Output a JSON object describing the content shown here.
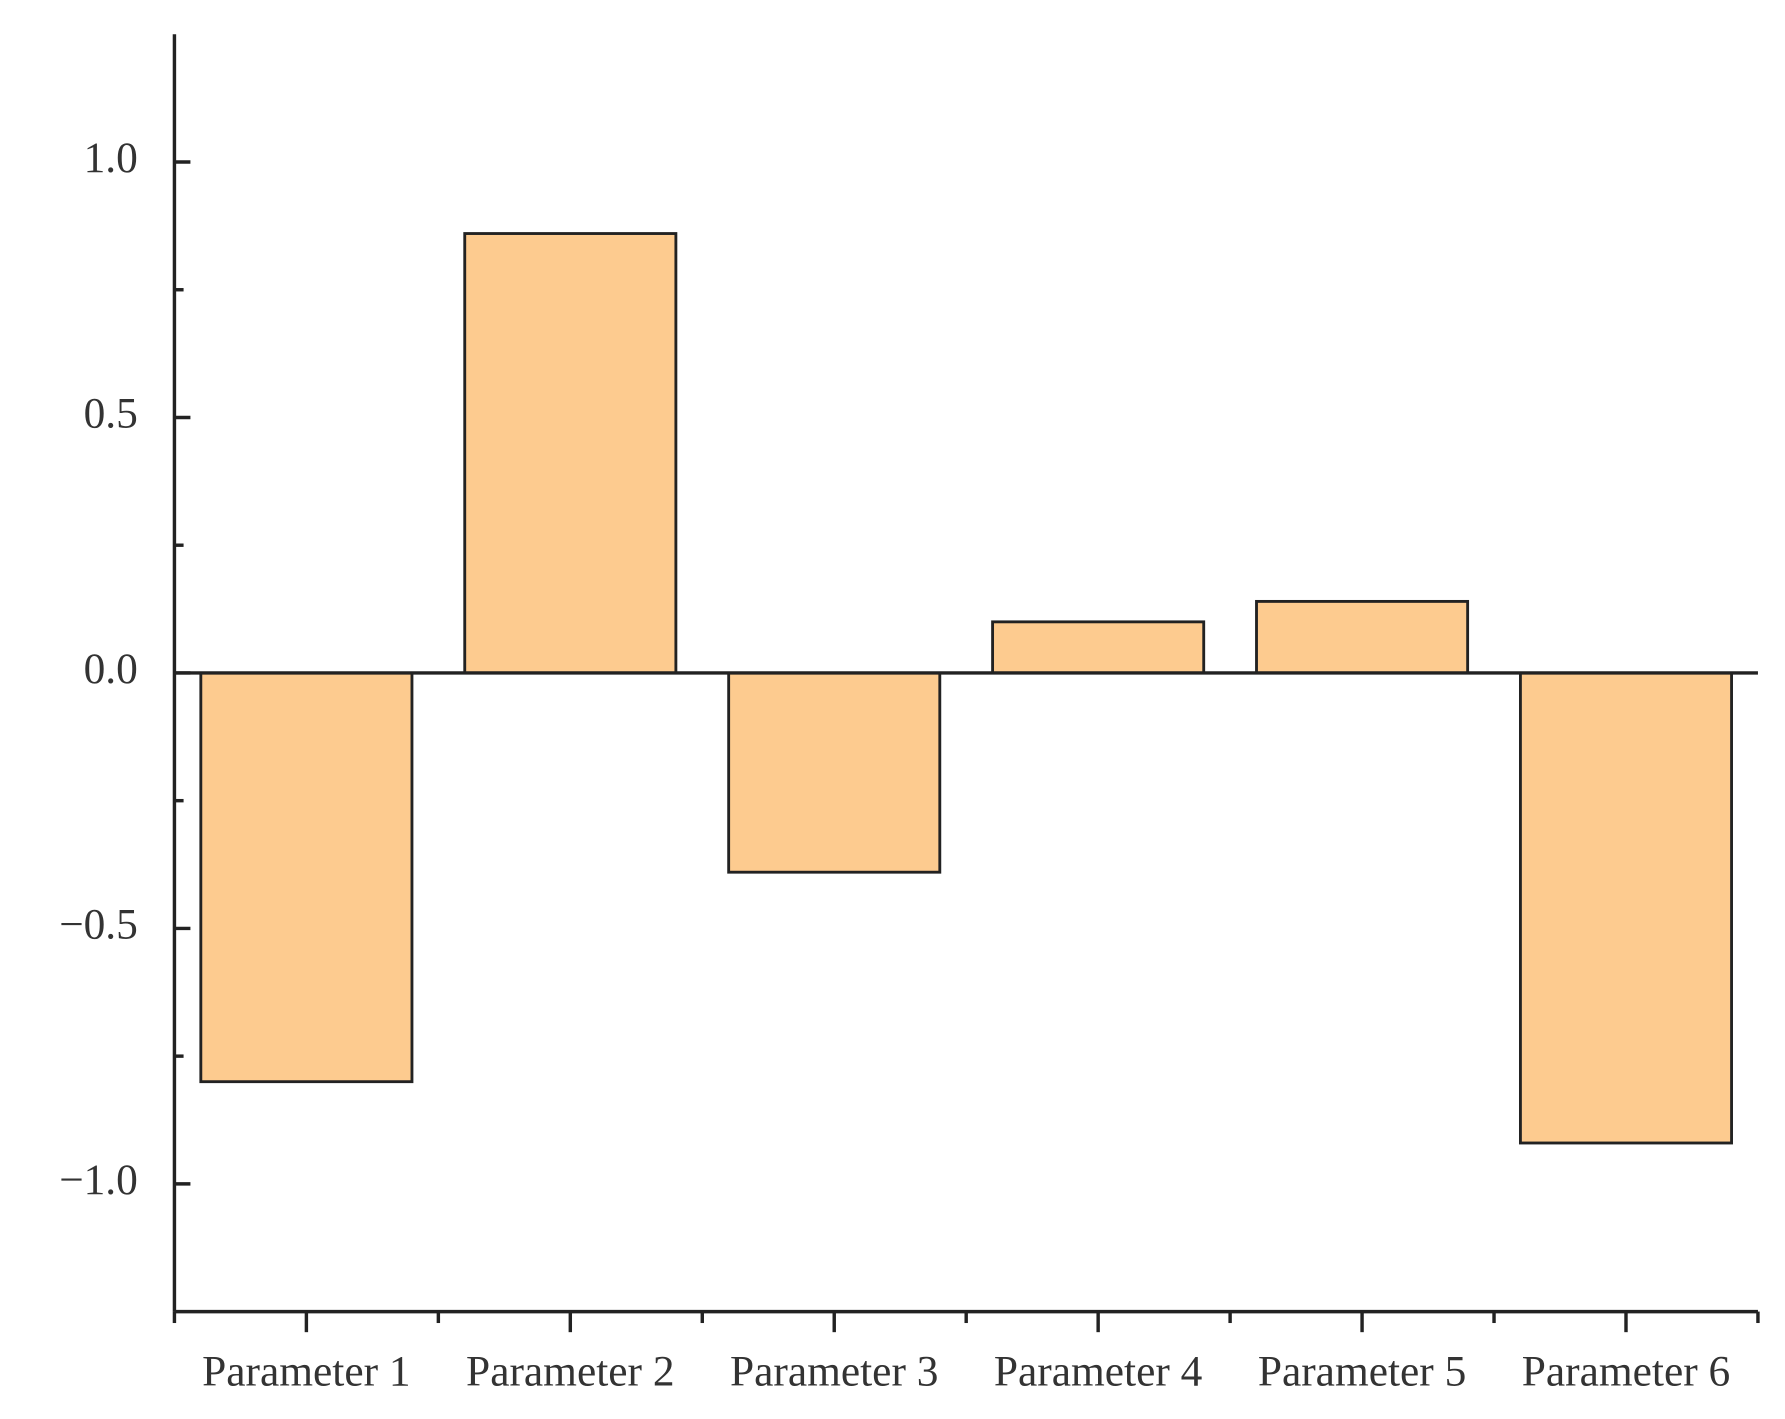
{
  "chart_data": {
    "type": "bar",
    "categories": [
      "Parameter 1",
      "Parameter 2",
      "Parameter 3",
      "Parameter 4",
      "Parameter 5",
      "Parameter 6"
    ],
    "values": [
      -0.8,
      0.86,
      -0.39,
      0.1,
      0.14,
      -0.92
    ],
    "color": "#fdcb8f",
    "ylim": [
      -1.25,
      1.25
    ],
    "yticks": [
      {
        "value": -1,
        "label": "−1.0"
      },
      {
        "value": -0.5,
        "label": "−0.5"
      },
      {
        "value": 0,
        "label": "0.0"
      },
      {
        "value": 0.5,
        "label": "0.5"
      },
      {
        "value": 1,
        "label": "1.0"
      }
    ],
    "yticks_minor": [
      -0.75,
      -0.25,
      0.25,
      0.75
    ],
    "grid": false
  }
}
